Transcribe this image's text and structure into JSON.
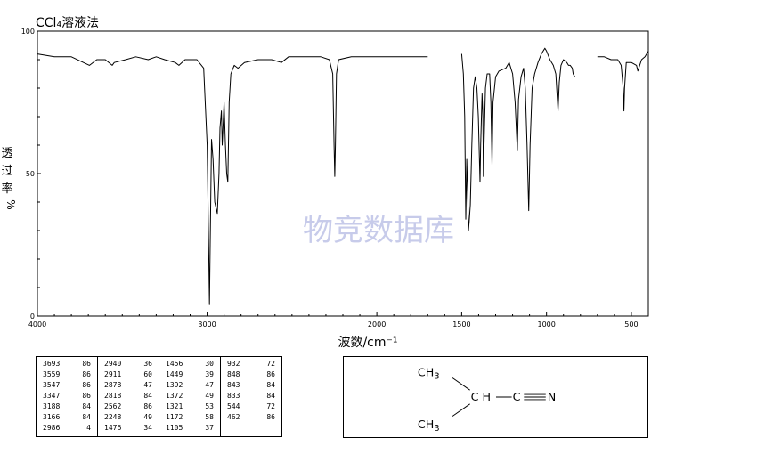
{
  "chart_data": {
    "type": "line",
    "title": "CCl₄溶液法",
    "ylabel": [
      "透",
      "过",
      "率",
      "%"
    ],
    "xlabel": "波数/cm⁻¹",
    "watermark": "物竞数据库",
    "xlim": [
      4000,
      400
    ],
    "ylim": [
      0,
      100
    ],
    "x_ticks": [
      4000,
      3000,
      2000,
      1500,
      1000,
      500
    ],
    "x_tick_labels": [
      "4000",
      "3000",
      "2000",
      "1500",
      "1000",
      "500"
    ],
    "y_ticks": [
      0,
      50,
      100
    ],
    "y_tick_labels": [
      "0",
      "50",
      "100"
    ],
    "series": [
      {
        "values": [
          [
            4000,
            92
          ],
          [
            3900,
            91
          ],
          [
            3800,
            91
          ],
          [
            3693,
            88
          ],
          [
            3650,
            90
          ],
          [
            3600,
            90
          ],
          [
            3559,
            88
          ],
          [
            3547,
            89
          ],
          [
            3480,
            90
          ],
          [
            3420,
            91
          ],
          [
            3347,
            90
          ],
          [
            3300,
            91
          ],
          [
            3250,
            90
          ],
          [
            3188,
            89
          ],
          [
            3166,
            88
          ],
          [
            3130,
            90
          ],
          [
            3060,
            90
          ],
          [
            3020,
            87
          ],
          [
            3000,
            60
          ],
          [
            2990,
            20
          ],
          [
            2986,
            4
          ],
          [
            2982,
            25
          ],
          [
            2974,
            62
          ],
          [
            2965,
            55
          ],
          [
            2955,
            40
          ],
          [
            2940,
            36
          ],
          [
            2930,
            50
          ],
          [
            2924,
            66
          ],
          [
            2916,
            72
          ],
          [
            2911,
            60
          ],
          [
            2900,
            75
          ],
          [
            2892,
            60
          ],
          [
            2885,
            50
          ],
          [
            2878,
            47
          ],
          [
            2870,
            75
          ],
          [
            2860,
            85
          ],
          [
            2840,
            88
          ],
          [
            2818,
            87
          ],
          [
            2780,
            89
          ],
          [
            2700,
            90
          ],
          [
            2620,
            90
          ],
          [
            2562,
            89
          ],
          [
            2520,
            91
          ],
          [
            2460,
            91
          ],
          [
            2400,
            91
          ],
          [
            2330,
            91
          ],
          [
            2280,
            90
          ],
          [
            2260,
            85
          ],
          [
            2252,
            60
          ],
          [
            2248,
            49
          ],
          [
            2244,
            60
          ],
          [
            2238,
            85
          ],
          [
            2225,
            90
          ],
          [
            2150,
            91
          ],
          [
            2050,
            91
          ],
          [
            1950,
            91
          ],
          [
            1850,
            91
          ],
          [
            1700,
            91
          ]
        ]
      },
      {
        "values": [
          [
            1500,
            92
          ],
          [
            1490,
            85
          ],
          [
            1482,
            70
          ],
          [
            1476,
            34
          ],
          [
            1470,
            55
          ],
          [
            1463,
            40
          ],
          [
            1460,
            30
          ],
          [
            1456,
            33
          ],
          [
            1449,
            39
          ],
          [
            1440,
            60
          ],
          [
            1430,
            80
          ],
          [
            1420,
            84
          ],
          [
            1410,
            80
          ],
          [
            1402,
            70
          ],
          [
            1392,
            47
          ],
          [
            1388,
            60
          ],
          [
            1380,
            78
          ],
          [
            1375,
            70
          ],
          [
            1372,
            49
          ],
          [
            1368,
            60
          ],
          [
            1360,
            80
          ],
          [
            1350,
            85
          ],
          [
            1335,
            85
          ],
          [
            1328,
            75
          ],
          [
            1321,
            53
          ],
          [
            1315,
            75
          ],
          [
            1300,
            84
          ],
          [
            1280,
            86
          ],
          [
            1240,
            87
          ],
          [
            1220,
            89
          ],
          [
            1200,
            85
          ],
          [
            1185,
            75
          ],
          [
            1172,
            58
          ],
          [
            1165,
            76
          ],
          [
            1150,
            84
          ],
          [
            1135,
            87
          ],
          [
            1125,
            80
          ],
          [
            1115,
            60
          ],
          [
            1105,
            37
          ],
          [
            1097,
            60
          ],
          [
            1085,
            80
          ],
          [
            1070,
            85
          ],
          [
            1050,
            89
          ],
          [
            1030,
            92
          ],
          [
            1010,
            94
          ],
          [
            1000,
            93
          ],
          [
            980,
            90
          ],
          [
            960,
            88
          ],
          [
            945,
            85
          ],
          [
            932,
            72
          ],
          [
            925,
            82
          ],
          [
            915,
            88
          ],
          [
            900,
            90
          ],
          [
            880,
            89
          ],
          [
            870,
            88
          ],
          [
            860,
            88
          ],
          [
            848,
            87
          ],
          [
            843,
            85
          ],
          [
            833,
            84
          ]
        ]
      },
      {
        "values": [
          [
            700,
            91
          ],
          [
            660,
            91
          ],
          [
            620,
            90
          ],
          [
            580,
            90
          ],
          [
            560,
            88
          ],
          [
            548,
            80
          ],
          [
            544,
            72
          ],
          [
            540,
            80
          ],
          [
            530,
            89
          ],
          [
            500,
            89
          ],
          [
            470,
            88
          ],
          [
            462,
            86
          ],
          [
            440,
            90
          ],
          [
            420,
            91
          ],
          [
            400,
            93
          ]
        ]
      }
    ]
  },
  "peak_table": [
    [
      [
        "3693",
        "86"
      ],
      [
        "3559",
        "86"
      ],
      [
        "3547",
        "86"
      ],
      [
        "3347",
        "86"
      ],
      [
        "3188",
        "84"
      ],
      [
        "3166",
        "84"
      ],
      [
        "2986",
        "4"
      ]
    ],
    [
      [
        "2940",
        "36"
      ],
      [
        "2911",
        "60"
      ],
      [
        "2878",
        "47"
      ],
      [
        "2818",
        "84"
      ],
      [
        "2562",
        "86"
      ],
      [
        "2248",
        "49"
      ],
      [
        "1476",
        "34"
      ]
    ],
    [
      [
        "1456",
        "30"
      ],
      [
        "1449",
        "39"
      ],
      [
        "1392",
        "47"
      ],
      [
        "1372",
        "49"
      ],
      [
        "1321",
        "53"
      ],
      [
        "1172",
        "58"
      ],
      [
        "1105",
        "37"
      ]
    ],
    [
      [
        "932",
        "72"
      ],
      [
        "848",
        "86"
      ],
      [
        "843",
        "84"
      ],
      [
        "833",
        "84"
      ],
      [
        "544",
        "72"
      ],
      [
        "462",
        "86"
      ]
    ]
  ],
  "structure": {
    "top_group": "CH",
    "top_sub": "3",
    "center": "C H",
    "nitrile_c": "C",
    "nitrile_n": "N",
    "bottom_group": "CH",
    "bottom_sub": "3"
  }
}
